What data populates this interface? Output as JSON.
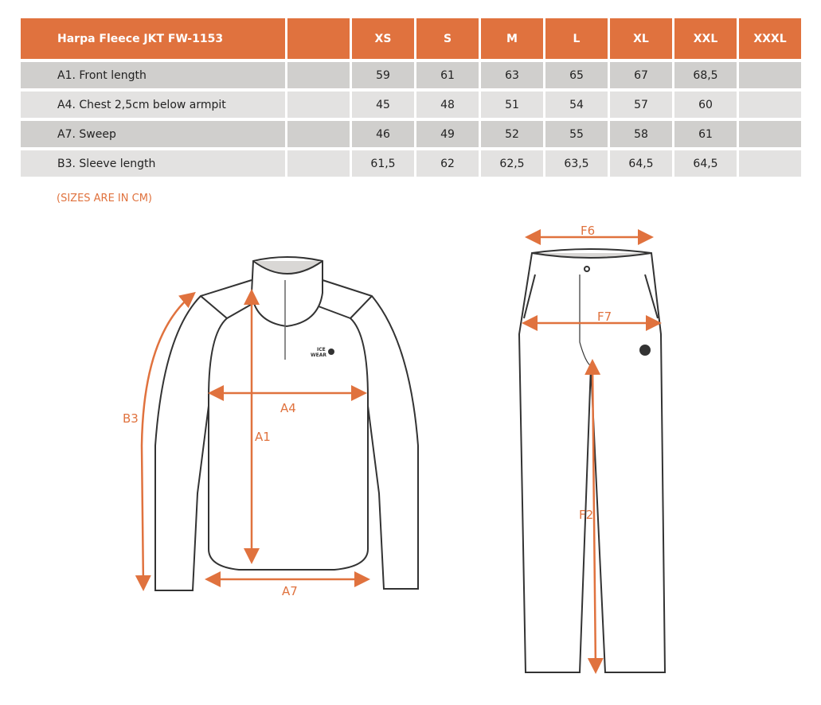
{
  "table": {
    "title": "Harpa Fleece JKT FW-1153",
    "sizes": [
      "XS",
      "S",
      "M",
      "L",
      "XL",
      "XXL",
      "XXXL"
    ],
    "rows": [
      {
        "label": "A1. Front length",
        "values": [
          "59",
          "61",
          "63",
          "65",
          "67",
          "68,5",
          ""
        ]
      },
      {
        "label": "A4. Chest 2,5cm below armpit",
        "values": [
          "45",
          "48",
          "51",
          "54",
          "57",
          "60",
          ""
        ]
      },
      {
        "label": "A7. Sweep",
        "values": [
          "46",
          "49",
          "52",
          "55",
          "58",
          "61",
          ""
        ]
      },
      {
        "label": "B3. Sleeve length",
        "values": [
          "61,5",
          "62",
          "62,5",
          "63,5",
          "64,5",
          "64,5",
          ""
        ]
      }
    ]
  },
  "note": "(SIZES ARE IN CM)",
  "diagram": {
    "accent": "#e0723e",
    "jacket_labels": {
      "a1": "A1",
      "a4": "A4",
      "a7": "A7",
      "b3": "B3"
    },
    "pants_labels": {
      "f6": "F6",
      "f7": "F7",
      "f2": "F2"
    },
    "logo": [
      "ICE",
      "WEAR"
    ]
  }
}
